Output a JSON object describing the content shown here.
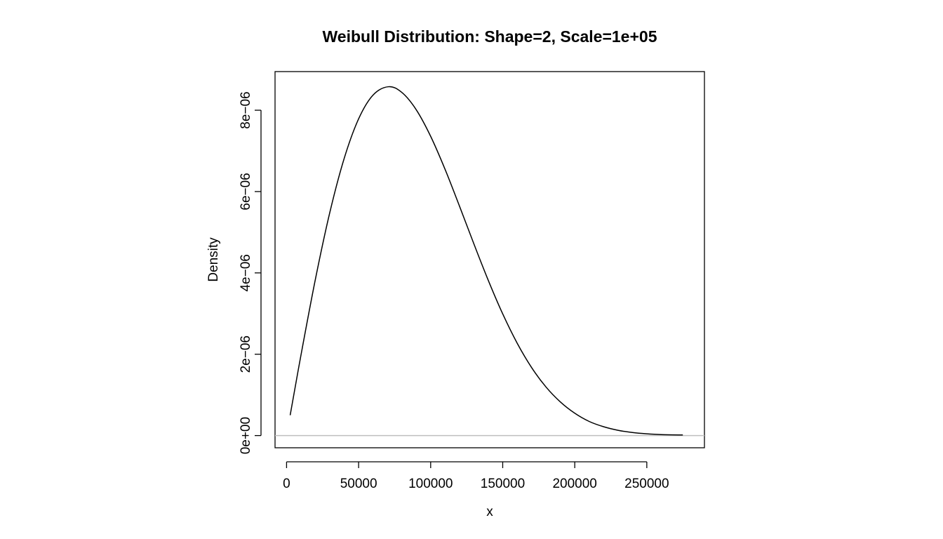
{
  "chart_data": {
    "type": "line",
    "title": "Weibull Distribution:  Shape=2, Scale=1e+05",
    "xlabel": "x",
    "ylabel": "Density",
    "xlim": [
      -8000,
      290000
    ],
    "ylim": [
      -3e-07,
      8.95e-06
    ],
    "x_ticks": [
      0,
      50000,
      100000,
      150000,
      200000,
      250000
    ],
    "x_tick_labels": [
      "0",
      "50000",
      "100000",
      "150000",
      "200000",
      "250000"
    ],
    "y_ticks": [
      0,
      2e-06,
      4e-06,
      6e-06,
      8e-06
    ],
    "y_tick_labels": [
      "0e+00",
      "2e−06",
      "4e−06",
      "6e−06",
      "8e−06"
    ],
    "reference_line": {
      "y": 0,
      "color": "#bebebe"
    },
    "series": [
      {
        "color": "#000000",
        "x": [
          2500,
          10000,
          20000,
          30000,
          40000,
          50000,
          60000,
          70710,
          80000,
          90000,
          100000,
          110000,
          120000,
          130000,
          140000,
          150000,
          160000,
          170000,
          180000,
          190000,
          200000,
          210000,
          220000,
          230000,
          240000,
          250000,
          260000,
          275000
        ],
        "values": [
          4.997e-07,
          1.98e-06,
          3.843e-06,
          5.484e-06,
          6.817e-06,
          7.788e-06,
          8.372e-06,
          8.578e-06,
          8.437e-06,
          8.011e-06,
          7.358e-06,
          6.546e-06,
          5.642e-06,
          4.713e-06,
          3.815e-06,
          2.992e-06,
          2.274e-06,
          1.675e-06,
          1.196e-06,
          8.274e-07,
          5.495e-07,
          3.472e-07,
          2.176e-07,
          1.298e-07,
          7.56e-08,
          4.29e-08,
          2.36e-08,
          1.45e-08
        ]
      }
    ]
  }
}
